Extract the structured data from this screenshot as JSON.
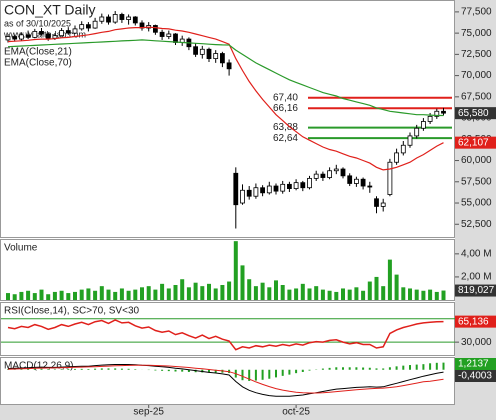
{
  "chart_data": [
    {
      "type": "candlestick",
      "title": "CON_XT Daily",
      "subtitle": "as of 30/10/2025",
      "source": "www.wealth-lab.com",
      "categories": [
        null,
        null,
        null,
        null,
        null,
        null,
        null,
        null,
        null,
        null,
        null,
        null,
        null,
        null,
        null,
        null,
        null,
        null,
        null,
        null,
        null,
        "sep-25",
        null,
        null,
        null,
        null,
        null,
        null,
        null,
        null,
        null,
        null,
        null,
        null,
        null,
        null,
        null,
        null,
        null,
        null,
        null,
        null,
        null,
        "oct-25",
        null,
        null,
        null,
        null,
        null,
        null,
        null,
        null,
        null,
        null,
        null,
        null,
        null,
        null,
        null,
        null,
        null,
        null,
        null,
        null,
        null,
        null
      ],
      "open": [
        74200,
        74600,
        74300,
        74800,
        74500,
        75200,
        74900,
        74400,
        74700,
        75300,
        75000,
        75500,
        76000,
        75600,
        76400,
        76900,
        76300,
        77200,
        76600,
        76900,
        76200,
        75600,
        75900,
        75100,
        74600,
        74900,
        73900,
        74300,
        73400,
        72500,
        73100,
        72000,
        72600,
        71500,
        58500,
        55000,
        56500,
        55800,
        56800,
        56200,
        57000,
        56400,
        57200,
        56700,
        57400,
        56800,
        57900,
        58400,
        58000,
        58800,
        59000,
        58200,
        57300,
        57800,
        57000,
        55500,
        54600,
        56000,
        59800,
        60900,
        61800,
        62900,
        63800,
        64600,
        65200,
        65800
      ],
      "high": [
        74900,
        74800,
        75100,
        75300,
        75500,
        75600,
        75100,
        75000,
        75600,
        75700,
        75900,
        76400,
        76300,
        76800,
        77300,
        77200,
        77600,
        77400,
        77200,
        77000,
        76500,
        76300,
        76000,
        75400,
        75300,
        75000,
        74700,
        74500,
        73800,
        73500,
        73300,
        73000,
        72800,
        71900,
        59200,
        57200,
        57000,
        57300,
        57100,
        57500,
        57300,
        57600,
        57500,
        57800,
        57600,
        58200,
        58800,
        58700,
        59200,
        59500,
        59200,
        58500,
        58100,
        58000,
        57500,
        55800,
        55500,
        60200,
        61400,
        62300,
        63300,
        64200,
        65000,
        65600,
        66100,
        66200
      ],
      "low": [
        73900,
        74000,
        74100,
        74300,
        74400,
        74700,
        74100,
        74200,
        74600,
        74800,
        74900,
        75300,
        75200,
        75500,
        76100,
        76000,
        76100,
        76200,
        76000,
        75900,
        75300,
        75200,
        74800,
        74200,
        74300,
        73600,
        73500,
        73000,
        72200,
        72000,
        71600,
        71500,
        71000,
        70000,
        52000,
        54800,
        55400,
        55500,
        55800,
        56000,
        56000,
        56100,
        56300,
        56500,
        56400,
        56600,
        57600,
        57600,
        57800,
        58400,
        57900,
        57000,
        56900,
        56600,
        56200,
        53800,
        54000,
        55800,
        59500,
        60600,
        61500,
        62600,
        63500,
        64300,
        64900,
        65300
      ],
      "close": [
        74600,
        74300,
        74800,
        74500,
        75200,
        74900,
        74400,
        74700,
        75300,
        75000,
        75500,
        76000,
        75600,
        76400,
        76900,
        76300,
        77200,
        76600,
        76900,
        76200,
        75600,
        75900,
        75100,
        74600,
        74900,
        73900,
        74300,
        73400,
        72500,
        73100,
        72000,
        72600,
        71500,
        70800,
        54800,
        56500,
        55800,
        56800,
        56200,
        57000,
        56400,
        57200,
        56700,
        57400,
        56800,
        57900,
        58400,
        58000,
        58800,
        59000,
        58200,
        57300,
        57800,
        57000,
        56900,
        54600,
        55000,
        59800,
        60900,
        61800,
        62900,
        63800,
        64600,
        65200,
        65800,
        65580
      ],
      "last_label": "65,580",
      "up_color": "#ffffff",
      "down_color": "#000000",
      "ylim": [
        51000,
        78900
      ],
      "yticks": [
        {
          "value": 77500,
          "label": "77,500"
        },
        {
          "value": 75000,
          "label": "75,000"
        },
        {
          "value": 72500,
          "label": "72,500"
        },
        {
          "value": 70000,
          "label": "70,000"
        },
        {
          "value": 67500,
          "label": "67,500"
        },
        {
          "value": 65000,
          "label": "65,000"
        },
        {
          "value": 62500,
          "label": "62,500"
        },
        {
          "value": 60000,
          "label": "60,000"
        },
        {
          "value": 57500,
          "label": "57,500"
        },
        {
          "value": 55000,
          "label": "55,000"
        },
        {
          "value": 52500,
          "label": "52,500"
        }
      ],
      "overlays": [
        {
          "name": "EMA(Close,21)",
          "color": "#e0201b",
          "last_label": "62,107",
          "values": [
            74000,
            74050,
            74100,
            74150,
            74250,
            74300,
            74300,
            74350,
            74450,
            74500,
            74600,
            74700,
            74800,
            74950,
            75100,
            75200,
            75400,
            75500,
            75600,
            75650,
            75650,
            75700,
            75650,
            75550,
            75500,
            75350,
            75250,
            75100,
            74900,
            74700,
            74500,
            74300,
            74000,
            73700,
            72000,
            70600,
            69300,
            68200,
            67200,
            66300,
            65400,
            64700,
            64000,
            63400,
            62800,
            62400,
            62000,
            61600,
            61300,
            61100,
            60800,
            60500,
            60300,
            60000,
            59700,
            59200,
            58900,
            59000,
            59200,
            59500,
            59800,
            60300,
            60700,
            61200,
            61700,
            62107
          ]
        },
        {
          "name": "EMA(Close,70)",
          "color": "#2a9a2a",
          "values": [
            73400,
            73440,
            73480,
            73520,
            73560,
            73600,
            73640,
            73680,
            73720,
            73760,
            73800,
            73840,
            73880,
            73920,
            73960,
            74000,
            74040,
            74080,
            74120,
            74160,
            74200,
            74150,
            74100,
            74050,
            74000,
            73950,
            73900,
            73850,
            73800,
            73750,
            73700,
            73650,
            73620,
            73600,
            73000,
            72500,
            72000,
            71500,
            71100,
            70700,
            70300,
            69900,
            69500,
            69200,
            68900,
            68600,
            68300,
            68000,
            67800,
            67600,
            67300,
            67100,
            66900,
            66700,
            66500,
            66200,
            66000,
            65800,
            65700,
            65600,
            65500,
            65400,
            65400,
            65350,
            65300,
            65300
          ]
        }
      ],
      "levels": [
        {
          "value": 67400,
          "label": "67,40",
          "color": "#e0201b"
        },
        {
          "value": 66160,
          "label": "66,16",
          "color": "#e0201b"
        },
        {
          "value": 63880,
          "label": "63,88",
          "color": "#2a9a2a"
        },
        {
          "value": 62640,
          "label": "62,64",
          "color": "#2a9a2a"
        }
      ]
    },
    {
      "type": "bar",
      "title": "Volume",
      "color": "#22a022",
      "last_label": "819,027",
      "values": [
        600000,
        500000,
        700000,
        800000,
        600000,
        900000,
        500000,
        700000,
        800000,
        600000,
        700000,
        900000,
        1000000,
        800000,
        1200000,
        900000,
        700000,
        1000000,
        800000,
        900000,
        1100000,
        1200000,
        900000,
        1400000,
        1000000,
        1300000,
        1800000,
        1100000,
        1500000,
        1200000,
        1400000,
        1000000,
        1300000,
        1600000,
        5100000,
        3000000,
        1800000,
        1200000,
        1500000,
        1100000,
        1700000,
        1300000,
        900000,
        1000000,
        1400000,
        1000000,
        1200000,
        900000,
        800000,
        700000,
        1000000,
        900000,
        1100000,
        800000,
        1600000,
        2000000,
        1200000,
        3500000,
        2200000,
        1100000,
        1000000,
        900000,
        800000,
        900000,
        700000,
        819027
      ],
      "ylim": [
        0,
        5200000
      ],
      "yticks": [
        {
          "value": 4000000,
          "label": "4,00 M"
        },
        {
          "value": 2000000,
          "label": "2,00 M"
        }
      ]
    },
    {
      "type": "line",
      "title": "RSI(Close,14), SC>70, SV<30",
      "color": "#e0201b",
      "last_label": "65,136",
      "values": [
        55,
        53,
        57,
        55,
        60,
        57,
        52,
        55,
        60,
        57,
        61,
        64,
        60,
        65,
        67,
        62,
        68,
        63,
        64,
        58,
        54,
        56,
        50,
        47,
        49,
        43,
        46,
        41,
        37,
        42,
        36,
        40,
        35,
        32,
        17,
        22,
        20,
        24,
        22,
        25,
        23,
        26,
        24,
        27,
        25,
        29,
        31,
        30,
        33,
        34,
        30,
        27,
        29,
        26,
        26,
        20,
        22,
        45,
        51,
        55,
        58,
        61,
        63,
        64,
        65,
        65.136
      ],
      "ylim": [
        8,
        97
      ],
      "yticks": [
        {
          "value": 30,
          "label": "30,000"
        }
      ],
      "levels": [
        70,
        30
      ],
      "level_color": "#2a9a2a"
    },
    {
      "type": "macd",
      "title": "MACD(12,26,9)",
      "macd_color": "#000000",
      "signal_color": "#e0201b",
      "hist_color": "#22a022",
      "macd": [
        0.2,
        0.25,
        0.3,
        0.35,
        0.4,
        0.45,
        0.4,
        0.4,
        0.45,
        0.5,
        0.55,
        0.6,
        0.6,
        0.7,
        0.8,
        0.85,
        0.9,
        0.9,
        0.9,
        0.85,
        0.75,
        0.7,
        0.6,
        0.5,
        0.4,
        0.25,
        0.15,
        0,
        -0.15,
        -0.3,
        -0.45,
        -0.55,
        -0.7,
        -0.9,
        -2,
        -2.9,
        -3.5,
        -3.9,
        -4.2,
        -4.4,
        -4.5,
        -4.5,
        -4.5,
        -4.4,
        -4.3,
        -4.1,
        -3.9,
        -3.7,
        -3.5,
        -3.3,
        -3.2,
        -3.1,
        -3,
        -2.95,
        -2.9,
        -2.95,
        -2.9,
        -2.6,
        -2.3,
        -2,
        -1.7,
        -1.4,
        -1.1,
        -0.85,
        -0.6,
        -0.4003
      ],
      "signal": [
        0.1,
        0.13,
        0.16,
        0.2,
        0.24,
        0.28,
        0.3,
        0.32,
        0.35,
        0.38,
        0.41,
        0.45,
        0.48,
        0.52,
        0.57,
        0.62,
        0.67,
        0.71,
        0.74,
        0.76,
        0.76,
        0.75,
        0.72,
        0.68,
        0.63,
        0.55,
        0.47,
        0.38,
        0.27,
        0.16,
        0.04,
        -0.08,
        -0.2,
        -0.34,
        -0.67,
        -1.12,
        -1.6,
        -2.06,
        -2.49,
        -2.87,
        -3.2,
        -3.46,
        -3.67,
        -3.82,
        -3.92,
        -3.96,
        -3.95,
        -3.9,
        -3.82,
        -3.72,
        -3.62,
        -3.52,
        -3.42,
        -3.33,
        -3.24,
        -3.18,
        -3.12,
        -3.02,
        -2.88,
        -2.7,
        -2.5,
        -2.28,
        -2.05,
        -1.95,
        -1.78,
        -1.614
      ],
      "histogram": [
        0.1,
        0.12,
        0.14,
        0.15,
        0.16,
        0.17,
        0.1,
        0.08,
        0.1,
        0.12,
        0.14,
        0.15,
        0.12,
        0.18,
        0.23,
        0.23,
        0.23,
        0.19,
        0.16,
        0.09,
        -0.01,
        -0.05,
        -0.12,
        -0.18,
        -0.23,
        -0.3,
        -0.32,
        -0.38,
        -0.42,
        -0.46,
        -0.49,
        -0.47,
        -0.5,
        -0.56,
        -1.33,
        -1.78,
        -1.9,
        -1.84,
        -1.71,
        -1.53,
        -1.3,
        -1.04,
        -0.83,
        -0.58,
        -0.38,
        -0.14,
        0.05,
        0.2,
        0.32,
        0.42,
        0.42,
        0.42,
        0.42,
        0.38,
        0.34,
        0.23,
        0.22,
        0.42,
        0.58,
        0.7,
        0.8,
        0.88,
        0.95,
        1.1,
        1.18,
        1.2137
      ],
      "hist_label": "1,2137",
      "macd_label": "-0,4003",
      "ylim": [
        -6,
        2
      ]
    }
  ]
}
